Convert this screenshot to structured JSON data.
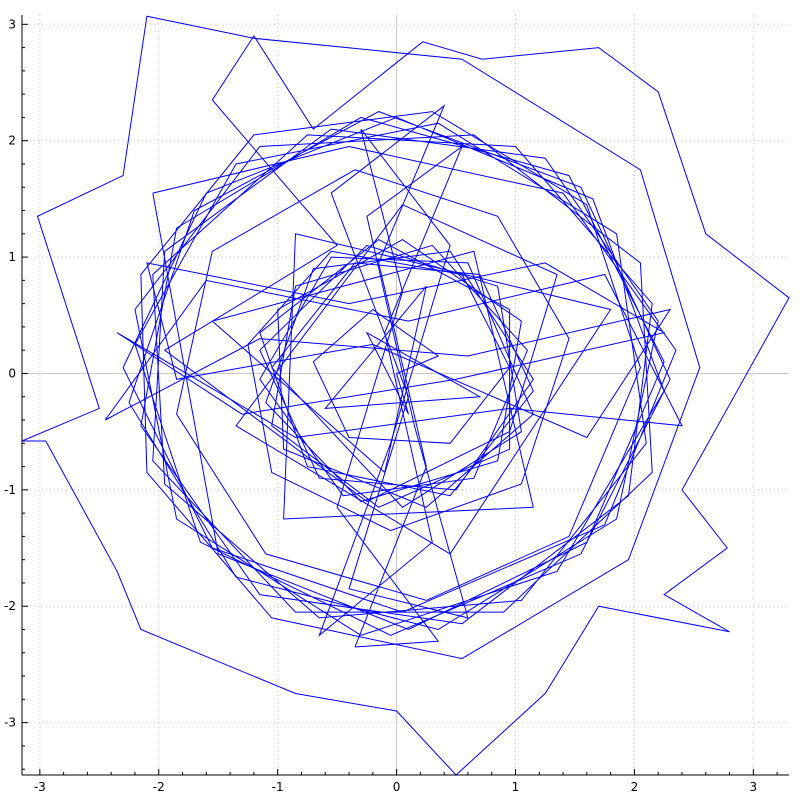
{
  "chart_data": {
    "type": "line",
    "title": "",
    "xlabel": "",
    "ylabel": "",
    "xlim": [
      -3.15,
      3.3
    ],
    "ylim": [
      -3.45,
      3.08
    ],
    "grid": true,
    "axes_through_origin": true,
    "x_ticks": [
      -3,
      -2,
      -1,
      0,
      1,
      2,
      3
    ],
    "y_ticks": [
      -3,
      -2,
      -1,
      0,
      1,
      2,
      3
    ],
    "x_tick_labels": [
      "-3",
      "-2",
      "-1",
      "0",
      "1",
      "2",
      "3"
    ],
    "y_tick_labels": [
      "-3",
      "-2",
      "-1",
      "0",
      "1",
      "2",
      "3"
    ],
    "series_color": "#0000ff",
    "series": [
      {
        "values": [
          [
            0.0,
            0.0
          ],
          [
            0.35,
            0.15
          ],
          [
            -0.2,
            0.55
          ],
          [
            -0.7,
            0.1
          ],
          [
            -0.4,
            -0.55
          ],
          [
            0.45,
            -0.6
          ],
          [
            0.95,
            0.05
          ],
          [
            0.55,
            0.85
          ],
          [
            -0.55,
            1.05
          ],
          [
            -1.25,
            0.25
          ],
          [
            -1.05,
            -0.85
          ],
          [
            -0.05,
            -1.35
          ],
          [
            1.05,
            -0.95
          ],
          [
            1.45,
            0.3
          ],
          [
            0.85,
            1.35
          ],
          [
            -0.35,
            1.75
          ],
          [
            -1.55,
            1.05
          ],
          [
            -1.85,
            -0.35
          ],
          [
            -1.1,
            -1.55
          ],
          [
            0.25,
            -1.95
          ],
          [
            1.45,
            -1.4
          ],
          [
            2.05,
            0.05
          ],
          [
            1.6,
            1.45
          ],
          [
            0.3,
            2.25
          ],
          [
            -1.2,
            2.05
          ],
          [
            -2.15,
            0.85
          ],
          [
            -2.1,
            -0.85
          ],
          [
            -1.05,
            -2.1
          ],
          [
            0.55,
            -2.45
          ],
          [
            1.95,
            -1.6
          ],
          [
            2.55,
            0.05
          ],
          [
            2.05,
            1.75
          ],
          [
            0.55,
            2.7
          ],
          [
            -1.2,
            2.88
          ],
          [
            -2.1,
            3.07
          ],
          [
            -2.3,
            1.7
          ],
          [
            -3.02,
            1.35
          ],
          [
            -2.5,
            -0.3
          ],
          [
            -3.15,
            -0.58
          ],
          [
            -2.95,
            -0.58
          ],
          [
            -2.35,
            -1.7
          ],
          [
            -2.15,
            -2.2
          ],
          [
            -0.85,
            -2.75
          ],
          [
            0.0,
            -2.9
          ],
          [
            0.5,
            -3.45
          ],
          [
            1.25,
            -2.75
          ],
          [
            1.7,
            -2.0
          ],
          [
            2.8,
            -2.22
          ],
          [
            2.25,
            -1.9
          ],
          [
            2.78,
            -1.5
          ],
          [
            2.4,
            -1.0
          ],
          [
            3.3,
            0.65
          ],
          [
            2.6,
            1.2
          ],
          [
            2.2,
            2.42
          ],
          [
            1.7,
            2.8
          ],
          [
            0.72,
            2.7
          ],
          [
            0.22,
            2.85
          ],
          [
            -0.7,
            2.1
          ],
          [
            -1.2,
            2.9
          ],
          [
            -1.55,
            2.35
          ],
          [
            -0.5,
            1.1
          ],
          [
            -1.95,
            0.2
          ],
          [
            -0.25,
            -1.1
          ],
          [
            0.95,
            -0.5
          ],
          [
            1.35,
            0.85
          ],
          [
            0.05,
            1.45
          ],
          [
            -1.35,
            -0.45
          ],
          [
            0.45,
            -1.55
          ],
          [
            1.8,
            0.55
          ],
          [
            -0.85,
            1.2
          ],
          [
            -0.95,
            -1.25
          ],
          [
            1.15,
            -1.15
          ],
          [
            0.65,
            1.05
          ],
          [
            -1.55,
            0.45
          ],
          [
            -0.1,
            -0.85
          ],
          [
            0.25,
            0.75
          ],
          [
            -0.6,
            -0.3
          ],
          [
            0.7,
            -0.2
          ],
          [
            -0.25,
            0.35
          ],
          [
            0.1,
            -0.35
          ],
          [
            0.0,
            0.0
          ]
        ]
      },
      {
        "values": [
          [
            -2.05,
            1.55
          ],
          [
            -0.4,
            1.95
          ],
          [
            1.4,
            1.55
          ],
          [
            2.35,
            0.2
          ],
          [
            1.75,
            -1.3
          ],
          [
            0.05,
            -2.05
          ],
          [
            -1.55,
            -1.5
          ],
          [
            -2.3,
            0.05
          ],
          [
            -1.6,
            1.55
          ],
          [
            0.0,
            2.2
          ],
          [
            1.65,
            1.5
          ],
          [
            2.25,
            -0.15
          ],
          [
            1.35,
            -1.7
          ],
          [
            -0.3,
            -2.25
          ],
          [
            -1.85,
            -1.25
          ],
          [
            -2.2,
            0.55
          ],
          [
            -1.15,
            1.95
          ],
          [
            0.65,
            2.05
          ],
          [
            2.05,
            0.95
          ],
          [
            2.15,
            -0.85
          ],
          [
            0.9,
            -2.05
          ],
          [
            -0.85,
            -2.05
          ],
          [
            -2.05,
            -0.75
          ],
          [
            -1.95,
            1.05
          ],
          [
            -0.55,
            2.1
          ],
          [
            1.25,
            1.85
          ],
          [
            2.2,
            0.45
          ],
          [
            1.85,
            -1.25
          ],
          [
            0.35,
            -2.2
          ],
          [
            -1.35,
            -1.75
          ],
          [
            -2.25,
            -0.25
          ],
          [
            -1.7,
            1.4
          ],
          [
            -0.15,
            2.25
          ],
          [
            1.55,
            1.6
          ],
          [
            2.3,
            -0.05
          ],
          [
            1.55,
            -1.55
          ],
          [
            -0.05,
            -2.25
          ],
          [
            -1.65,
            -1.45
          ],
          [
            -2.2,
            0.25
          ],
          [
            -1.35,
            1.8
          ],
          [
            0.35,
            2.15
          ],
          [
            1.85,
            1.2
          ],
          [
            2.1,
            -0.6
          ],
          [
            1.05,
            -1.95
          ],
          [
            -0.65,
            -2.1
          ],
          [
            -1.95,
            -0.95
          ],
          [
            -2.05,
            0.85
          ],
          [
            -0.75,
            2.05
          ],
          [
            1.0,
            1.95
          ],
          [
            2.15,
            0.6
          ],
          [
            1.95,
            -1.05
          ],
          [
            0.55,
            -2.15
          ],
          [
            -1.15,
            -1.9
          ],
          [
            -2.15,
            -0.45
          ],
          [
            -1.85,
            1.25
          ],
          [
            -0.3,
            2.2
          ],
          [
            1.45,
            1.7
          ],
          [
            2.25,
            0.1
          ],
          [
            1.6,
            -1.45
          ],
          [
            0.1,
            -2.2
          ],
          [
            -1.5,
            -1.55
          ],
          [
            -2.05,
            1.55
          ]
        ]
      },
      {
        "values": [
          [
            -1.05,
            0.05
          ],
          [
            -0.35,
            0.95
          ],
          [
            0.7,
            0.85
          ],
          [
            1.15,
            -0.15
          ],
          [
            0.45,
            -1.05
          ],
          [
            -0.75,
            -0.8
          ],
          [
            -1.15,
            0.35
          ],
          [
            -0.15,
            1.15
          ],
          [
            0.95,
            0.55
          ],
          [
            0.95,
            -0.65
          ],
          [
            -0.15,
            -1.15
          ],
          [
            -1.05,
            -0.45
          ],
          [
            -0.85,
            0.75
          ],
          [
            0.3,
            1.1
          ],
          [
            1.1,
            0.2
          ],
          [
            0.65,
            -0.9
          ],
          [
            -0.45,
            -1.05
          ],
          [
            -1.15,
            -0.05
          ],
          [
            -0.55,
            1.0
          ],
          [
            0.6,
            0.95
          ],
          [
            1.15,
            -0.35
          ],
          [
            0.25,
            -1.15
          ],
          [
            -0.95,
            -0.65
          ],
          [
            -1.0,
            0.55
          ],
          [
            0.05,
            1.15
          ],
          [
            1.05,
            0.45
          ],
          [
            0.85,
            -0.75
          ],
          [
            -0.3,
            -1.1
          ],
          [
            -1.1,
            -0.25
          ],
          [
            -0.7,
            0.9
          ],
          [
            0.45,
            1.05
          ],
          [
            1.15,
            -0.05
          ],
          [
            0.5,
            -1.0
          ],
          [
            -0.65,
            -0.9
          ],
          [
            -1.15,
            0.2
          ],
          [
            -0.25,
            1.1
          ],
          [
            0.85,
            0.75
          ],
          [
            1.05,
            -0.5
          ],
          [
            0.05,
            -1.15
          ],
          [
            -1.05,
            0.05
          ]
        ]
      },
      {
        "values": [
          [
            -2.45,
            -0.4
          ],
          [
            -1.6,
            0.8
          ],
          [
            0.1,
            0.45
          ],
          [
            1.75,
            0.85
          ],
          [
            2.4,
            -0.45
          ],
          [
            0.95,
            -0.3
          ],
          [
            -0.85,
            -0.55
          ],
          [
            -2.35,
            0.35
          ],
          [
            -1.3,
            -0.35
          ],
          [
            0.5,
            -0.05
          ],
          [
            2.25,
            0.35
          ],
          [
            1.25,
            0.95
          ],
          [
            -0.4,
            0.6
          ],
          [
            -2.1,
            0.95
          ],
          [
            -1.85,
            -0.05
          ],
          [
            -0.2,
            0.25
          ],
          [
            1.6,
            -0.55
          ],
          [
            2.3,
            0.55
          ],
          [
            0.6,
            0.15
          ],
          [
            -1.15,
            0.3
          ],
          [
            -2.45,
            -0.4
          ]
        ]
      },
      {
        "values": [
          [
            -0.35,
            -2.35
          ],
          [
            0.25,
            -0.8
          ],
          [
            -0.15,
            0.95
          ],
          [
            0.4,
            2.3
          ],
          [
            -0.55,
            1.55
          ],
          [
            0.1,
            -0.2
          ],
          [
            -0.4,
            -1.85
          ],
          [
            0.6,
            -2.1
          ],
          [
            0.15,
            -0.45
          ],
          [
            -0.25,
            1.35
          ],
          [
            0.55,
            1.95
          ],
          [
            -0.1,
            0.35
          ],
          [
            0.3,
            -1.45
          ],
          [
            -0.65,
            -2.25
          ],
          [
            -0.05,
            -0.6
          ],
          [
            0.45,
            1.1
          ],
          [
            -0.3,
            2.1
          ],
          [
            0.05,
            0.7
          ],
          [
            -0.5,
            -1.15
          ],
          [
            0.35,
            -2.3
          ],
          [
            -0.35,
            -2.35
          ]
        ]
      }
    ]
  }
}
